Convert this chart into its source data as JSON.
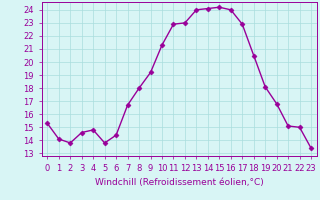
{
  "x": [
    0,
    1,
    2,
    3,
    4,
    5,
    6,
    7,
    8,
    9,
    10,
    11,
    12,
    13,
    14,
    15,
    16,
    17,
    18,
    19,
    20,
    21,
    22,
    23
  ],
  "y": [
    15.3,
    14.1,
    13.8,
    14.6,
    14.8,
    13.8,
    14.4,
    16.7,
    18.0,
    19.2,
    21.3,
    22.9,
    23.0,
    24.0,
    24.1,
    24.2,
    24.0,
    22.9,
    20.5,
    18.1,
    16.8,
    15.1,
    15.0,
    13.4
  ],
  "line_color": "#990099",
  "marker": "D",
  "marker_size": 2.5,
  "linewidth": 1.0,
  "xlabel": "Windchill (Refroidissement éolien,°C)",
  "xlabel_fontsize": 6.5,
  "ylabel_ticks": [
    13,
    14,
    15,
    16,
    17,
    18,
    19,
    20,
    21,
    22,
    23,
    24
  ],
  "xlim": [
    -0.5,
    23.5
  ],
  "ylim": [
    12.8,
    24.6
  ],
  "background_color": "#d8f5f5",
  "grid_color": "#aadddd",
  "tick_fontsize": 6.0
}
